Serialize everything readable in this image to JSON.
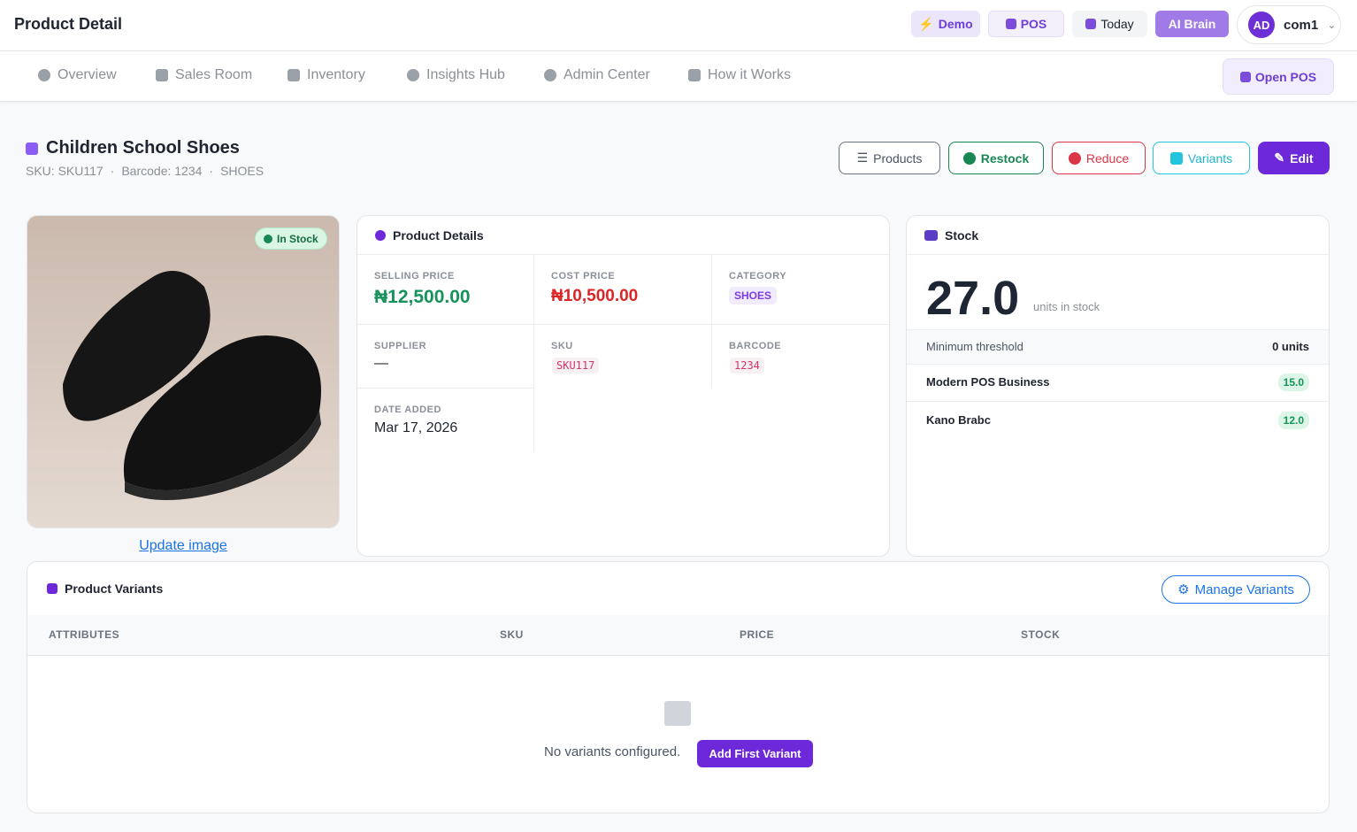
{
  "header": {
    "title": "Product Detail",
    "buttons": [
      "Demo",
      "POS",
      "Today",
      "AI Brain"
    ],
    "user": {
      "initials": "AD",
      "name": "com1"
    }
  },
  "nav": {
    "items": [
      "Overview",
      "Sales Room",
      "Inventory",
      "Insights Hub",
      "Admin Center",
      "How it Works"
    ],
    "open_pos": "Open POS"
  },
  "product": {
    "name": "Children School Shoes",
    "meta": [
      "SKU: SKU117",
      "Barcode: 1234",
      "SHOES"
    ],
    "actions": [
      "Products",
      "Restock",
      "Reduce",
      "Variants",
      "Edit"
    ]
  },
  "image": {
    "badge": "In Stock",
    "update_link": "Update image"
  },
  "details": {
    "title": "Product Details",
    "fields": [
      {
        "label": "SELLING PRICE",
        "value": "₦12,500.00"
      },
      {
        "label": "COST PRICE",
        "value": "₦10,500.00"
      },
      {
        "label": "CATEGORY",
        "value": "SHOES"
      },
      {
        "label": "SUPPLIER",
        "value": "—"
      },
      {
        "label": "SKU",
        "value": "SKU117"
      },
      {
        "label": "BARCODE",
        "value": "1234"
      },
      {
        "label": "DATE ADDED",
        "value": "Mar 17, 2026"
      }
    ]
  },
  "stock": {
    "title": "Stock",
    "quantity": "27.0",
    "unit_label": "units in stock",
    "threshold_label": "Minimum threshold",
    "threshold_value": "0 units",
    "locations": [
      {
        "name": "Modern POS Business",
        "qty": "15.0"
      },
      {
        "name": "Kano Brabc",
        "qty": "12.0"
      }
    ]
  },
  "variants": {
    "title": "Product Variants",
    "manage": "Manage Variants",
    "columns": [
      "ATTRIBUTES",
      "SKU",
      "PRICE",
      "STOCK"
    ],
    "empty": "No variants configured.",
    "add": "Add First Variant"
  }
}
